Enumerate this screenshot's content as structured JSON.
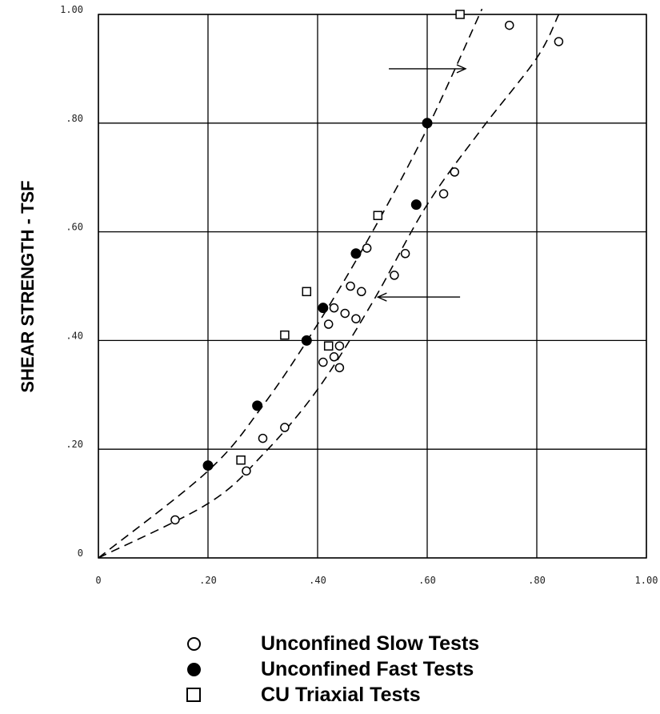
{
  "chart_data": {
    "type": "scatter",
    "title": "",
    "xlabel": "",
    "ylabel": "SHEAR STRENGTH - TSF",
    "xlim": [
      0,
      1.0
    ],
    "ylim": [
      0,
      1.0
    ],
    "grid": true,
    "legend_position": "bottom",
    "x_ticks": [
      "0",
      ".20",
      ".40",
      ".60",
      ".80",
      "1.00"
    ],
    "y_ticks": [
      "0",
      ".20",
      ".40",
      ".60",
      ".80",
      "1.00"
    ],
    "series": [
      {
        "name": "Unconfined Slow Tests",
        "marker": "open-circle",
        "points": [
          [
            0.14,
            0.07
          ],
          [
            0.27,
            0.16
          ],
          [
            0.3,
            0.22
          ],
          [
            0.34,
            0.24
          ],
          [
            0.41,
            0.36
          ],
          [
            0.42,
            0.43
          ],
          [
            0.43,
            0.37
          ],
          [
            0.43,
            0.46
          ],
          [
            0.44,
            0.35
          ],
          [
            0.44,
            0.39
          ],
          [
            0.45,
            0.45
          ],
          [
            0.46,
            0.5
          ],
          [
            0.47,
            0.44
          ],
          [
            0.48,
            0.49
          ],
          [
            0.49,
            0.57
          ],
          [
            0.54,
            0.52
          ],
          [
            0.56,
            0.56
          ],
          [
            0.63,
            0.67
          ],
          [
            0.65,
            0.71
          ],
          [
            0.75,
            0.98
          ],
          [
            0.84,
            0.95
          ]
        ]
      },
      {
        "name": "Unconfined Fast Tests",
        "marker": "filled-circle",
        "points": [
          [
            0.2,
            0.17
          ],
          [
            0.29,
            0.28
          ],
          [
            0.38,
            0.4
          ],
          [
            0.41,
            0.46
          ],
          [
            0.47,
            0.56
          ],
          [
            0.58,
            0.65
          ],
          [
            0.6,
            0.8
          ]
        ]
      },
      {
        "name": "CU Triaxial Tests",
        "marker": "open-square",
        "points": [
          [
            0.26,
            0.18
          ],
          [
            0.34,
            0.41
          ],
          [
            0.38,
            0.49
          ],
          [
            0.42,
            0.39
          ],
          [
            0.51,
            0.63
          ],
          [
            0.66,
            1.0
          ]
        ]
      }
    ],
    "fit_curves": [
      {
        "style": "dashed",
        "points": [
          [
            0,
            0
          ],
          [
            0.2,
            0.16
          ],
          [
            0.3,
            0.28
          ],
          [
            0.4,
            0.43
          ],
          [
            0.5,
            0.6
          ],
          [
            0.6,
            0.79
          ],
          [
            0.7,
            1.01
          ]
        ]
      },
      {
        "style": "dashed",
        "points": [
          [
            0,
            0
          ],
          [
            0.2,
            0.1
          ],
          [
            0.3,
            0.19
          ],
          [
            0.4,
            0.31
          ],
          [
            0.5,
            0.47
          ],
          [
            0.6,
            0.65
          ],
          [
            0.7,
            0.79
          ],
          [
            0.8,
            0.92
          ],
          [
            0.84,
            1.0
          ]
        ]
      }
    ],
    "annotations": [
      {
        "type": "arrow",
        "from": [
          0.53,
          0.9
        ],
        "to": [
          0.67,
          0.9
        ]
      },
      {
        "type": "arrow",
        "from": [
          0.66,
          0.48
        ],
        "to": [
          0.51,
          0.48
        ]
      }
    ]
  }
}
